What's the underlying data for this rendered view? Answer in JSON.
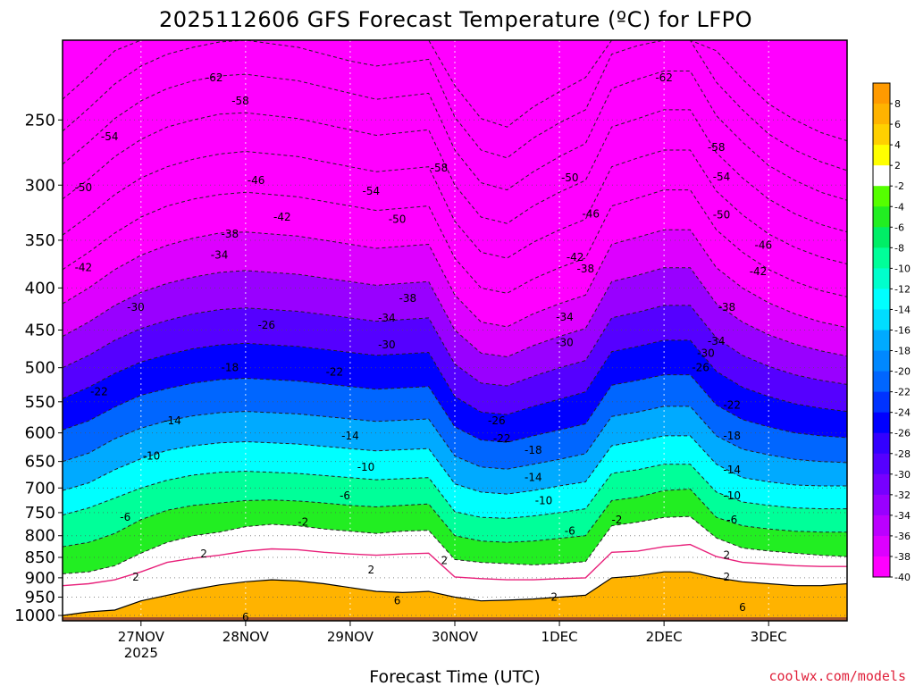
{
  "chart_data": {
    "type": "heatmap",
    "title": "2025112606 GFS Forecast Temperature (ºC) for LFPO",
    "xlabel": "Forecast Time (UTC)",
    "ylabel": "",
    "credit": "coolwx.com/models",
    "colors": {
      "surface": "#a0522d",
      "freezing_line": "#e8207a",
      "contour": "#222222",
      "positive_contour": "#000000"
    },
    "x_ticks": [
      {
        "label": "27NOV",
        "sub": "2025",
        "day": 27
      },
      {
        "label": "28NOV",
        "sub": "",
        "day": 28
      },
      {
        "label": "29NOV",
        "sub": "",
        "day": 29
      },
      {
        "label": "30NOV",
        "sub": "",
        "day": 30
      },
      {
        "label": "1DEC",
        "sub": "",
        "day": 31
      },
      {
        "label": "2DEC",
        "sub": "",
        "day": 32
      },
      {
        "label": "3DEC",
        "sub": "",
        "day": 33
      }
    ],
    "xlim": [
      26.25,
      33.75
    ],
    "pressure_levels": [
      250,
      300,
      350,
      400,
      450,
      500,
      550,
      600,
      650,
      700,
      750,
      800,
      850,
      900,
      950,
      1000
    ],
    "ylim_pressure": [
      200,
      1015
    ],
    "colorbar": {
      "labels": [
        "8",
        "6",
        "4",
        "2",
        "-2",
        "-4",
        "-6",
        "-8",
        "-10",
        "-12",
        "-14",
        "-16",
        "-18",
        "-20",
        "-22",
        "-24",
        "-26",
        "-28",
        "-30",
        "-32",
        "-34",
        "-36",
        "-38",
        "-40"
      ],
      "bins": [
        {
          "min": 8,
          "color": "#ff9a00"
        },
        {
          "min": 6,
          "color": "#ffb300"
        },
        {
          "min": 4,
          "color": "#ffd000"
        },
        {
          "min": 2,
          "color": "#ffff00"
        },
        {
          "min": -2,
          "color": "#ffffff"
        },
        {
          "min": -4,
          "color": "#55ff00"
        },
        {
          "min": -6,
          "color": "#22ee22"
        },
        {
          "min": -8,
          "color": "#00ee66"
        },
        {
          "min": -10,
          "color": "#00ff99"
        },
        {
          "min": -12,
          "color": "#00ffcc"
        },
        {
          "min": -14,
          "color": "#00ffff"
        },
        {
          "min": -16,
          "color": "#00ddff"
        },
        {
          "min": -18,
          "color": "#00aaff"
        },
        {
          "min": -20,
          "color": "#0088ff"
        },
        {
          "min": -22,
          "color": "#0066ff"
        },
        {
          "min": -24,
          "color": "#0033ff"
        },
        {
          "min": -26,
          "color": "#0000ff"
        },
        {
          "min": -28,
          "color": "#3300ff"
        },
        {
          "min": -30,
          "color": "#5500ff"
        },
        {
          "min": -32,
          "color": "#7700ff"
        },
        {
          "min": -34,
          "color": "#9900ff"
        },
        {
          "min": -36,
          "color": "#bb00ff"
        },
        {
          "min": -38,
          "color": "#dd00ff"
        },
        {
          "min": -999,
          "color": "#ff00ff"
        }
      ]
    },
    "isotherm_pressure_by_time": {
      "x": [
        26.25,
        26.5,
        26.75,
        27.0,
        27.25,
        27.5,
        27.75,
        28.0,
        28.25,
        28.5,
        28.75,
        29.0,
        29.25,
        29.5,
        29.75,
        30.0,
        30.25,
        30.5,
        30.75,
        31.0,
        31.25,
        31.5,
        31.75,
        32.0,
        32.25,
        32.5,
        32.75,
        33.0,
        33.25,
        33.5,
        33.75
      ],
      "levels": [
        {
          "temp": 2,
          "p": [
            1000,
            990,
            985,
            960,
            945,
            930,
            918,
            910,
            905,
            908,
            915,
            925,
            935,
            938,
            935,
            950,
            960,
            958,
            955,
            950,
            945,
            900,
            895,
            885,
            885,
            900,
            910,
            915,
            920,
            920,
            915
          ]
        },
        {
          "temp": 0,
          "p": [
            920,
            915,
            905,
            885,
            862,
            852,
            845,
            835,
            830,
            832,
            838,
            842,
            845,
            842,
            840,
            898,
            902,
            905,
            905,
            902,
            900,
            838,
            835,
            825,
            820,
            848,
            862,
            866,
            870,
            872,
            872
          ]
        },
        {
          "temp": -2,
          "p": [
            890,
            885,
            870,
            840,
            815,
            800,
            792,
            780,
            775,
            778,
            785,
            790,
            795,
            790,
            788,
            855,
            862,
            865,
            868,
            865,
            860,
            778,
            770,
            760,
            758,
            805,
            828,
            835,
            840,
            845,
            848
          ]
        },
        {
          "temp": -6,
          "p": [
            825,
            815,
            795,
            765,
            745,
            735,
            730,
            725,
            724,
            726,
            730,
            735,
            738,
            735,
            732,
            800,
            812,
            815,
            812,
            806,
            800,
            725,
            718,
            705,
            702,
            760,
            778,
            785,
            790,
            792,
            792
          ]
        },
        {
          "temp": -10,
          "p": [
            755,
            740,
            720,
            700,
            685,
            675,
            670,
            668,
            670,
            672,
            676,
            680,
            684,
            682,
            680,
            748,
            760,
            762,
            757,
            750,
            742,
            672,
            665,
            655,
            655,
            708,
            728,
            735,
            740,
            742,
            742
          ]
        },
        {
          "temp": -14,
          "p": [
            705,
            690,
            665,
            645,
            630,
            622,
            617,
            615,
            617,
            619,
            623,
            627,
            631,
            629,
            627,
            692,
            708,
            712,
            705,
            696,
            688,
            622,
            614,
            605,
            605,
            655,
            680,
            688,
            694,
            696,
            696
          ]
        },
        {
          "temp": -18,
          "p": [
            650,
            635,
            610,
            592,
            580,
            572,
            567,
            565,
            567,
            569,
            573,
            577,
            581,
            579,
            577,
            640,
            660,
            664,
            655,
            646,
            636,
            573,
            566,
            557,
            557,
            605,
            628,
            638,
            646,
            650,
            652
          ]
        },
        {
          "temp": -22,
          "p": [
            595,
            580,
            558,
            540,
            530,
            522,
            517,
            515,
            517,
            519,
            523,
            527,
            531,
            529,
            527,
            590,
            612,
            616,
            605,
            595,
            585,
            525,
            518,
            510,
            510,
            555,
            578,
            590,
            600,
            605,
            608
          ]
        },
        {
          "temp": -26,
          "p": [
            545,
            528,
            508,
            492,
            482,
            474,
            469,
            467,
            469,
            471,
            475,
            479,
            483,
            481,
            479,
            542,
            566,
            570,
            557,
            546,
            535,
            478,
            471,
            463,
            463,
            505,
            528,
            542,
            553,
            560,
            565
          ]
        },
        {
          "temp": -30,
          "p": [
            500,
            483,
            463,
            448,
            438,
            430,
            425,
            423,
            425,
            427,
            431,
            435,
            439,
            437,
            435,
            495,
            522,
            526,
            512,
            500,
            490,
            435,
            428,
            420,
            420,
            460,
            483,
            498,
            510,
            518,
            524
          ]
        },
        {
          "temp": -34,
          "p": [
            458,
            440,
            420,
            405,
            395,
            388,
            383,
            381,
            383,
            385,
            389,
            393,
            397,
            395,
            393,
            450,
            480,
            485,
            470,
            458,
            448,
            393,
            386,
            378,
            378,
            418,
            440,
            456,
            468,
            477,
            484
          ]
        },
        {
          "temp": -38,
          "p": [
            418,
            400,
            380,
            365,
            355,
            348,
            343,
            342,
            344,
            346,
            350,
            354,
            358,
            356,
            354,
            408,
            440,
            446,
            430,
            418,
            408,
            354,
            347,
            340,
            340,
            378,
            400,
            417,
            430,
            440,
            447
          ]
        },
        {
          "temp": -42,
          "p": [
            380,
            362,
            343,
            328,
            318,
            312,
            308,
            306,
            308,
            310,
            314,
            318,
            322,
            320,
            318,
            368,
            400,
            406,
            390,
            378,
            368,
            318,
            311,
            304,
            304,
            340,
            362,
            380,
            393,
            403,
            410
          ]
        },
        {
          "temp": -46,
          "p": [
            345,
            327,
            308,
            294,
            285,
            279,
            275,
            273,
            275,
            277,
            281,
            285,
            289,
            287,
            285,
            332,
            362,
            368,
            352,
            340,
            330,
            285,
            278,
            272,
            272,
            305,
            326,
            344,
            357,
            367,
            374
          ]
        },
        {
          "temp": -50,
          "p": [
            312,
            295,
            277,
            264,
            255,
            250,
            246,
            245,
            247,
            249,
            253,
            257,
            261,
            259,
            257,
            300,
            328,
            334,
            318,
            306,
            296,
            255,
            249,
            243,
            243,
            274,
            294,
            312,
            325,
            335,
            342
          ]
        },
        {
          "temp": -54,
          "p": [
            283,
            266,
            249,
            237,
            229,
            224,
            221,
            220,
            222,
            224,
            228,
            232,
            236,
            234,
            232,
            272,
            298,
            304,
            289,
            277,
            267,
            229,
            223,
            218,
            218,
            247,
            266,
            284,
            296,
            306,
            313
          ]
        },
        {
          "temp": -58,
          "p": [
            258,
            242,
            226,
            215,
            208,
            204,
            201,
            200,
            202,
            204,
            208,
            212,
            215,
            213,
            211,
            248,
            272,
            278,
            263,
            252,
            243,
            208,
            203,
            200,
            200,
            225,
            243,
            260,
            272,
            281,
            288
          ]
        },
        {
          "temp": -62,
          "p": [
            236,
            221,
            206,
            200,
            200,
            200,
            200,
            200,
            200,
            200,
            200,
            200,
            200,
            200,
            200,
            227,
            249,
            255,
            241,
            231,
            222,
            200,
            200,
            200,
            200,
            206,
            223,
            239,
            250,
            259,
            265
          ]
        }
      ]
    },
    "contour_labels": [
      {
        "text": "-62",
        "day": 27.7,
        "p": 222
      },
      {
        "text": "-62",
        "day": 32.0,
        "p": 222
      },
      {
        "text": "-58",
        "day": 27.95,
        "p": 237
      },
      {
        "text": "-58",
        "day": 29.85,
        "p": 286
      },
      {
        "text": "-58",
        "day": 32.5,
        "p": 270
      },
      {
        "text": "-54",
        "day": 26.7,
        "p": 262
      },
      {
        "text": "-54",
        "day": 29.2,
        "p": 305
      },
      {
        "text": "-54",
        "day": 32.55,
        "p": 293
      },
      {
        "text": "-50",
        "day": 26.45,
        "p": 302
      },
      {
        "text": "-50",
        "day": 29.45,
        "p": 330
      },
      {
        "text": "-50",
        "day": 31.1,
        "p": 294
      },
      {
        "text": "-50",
        "day": 32.55,
        "p": 326
      },
      {
        "text": "-46",
        "day": 28.1,
        "p": 296
      },
      {
        "text": "-46",
        "day": 31.3,
        "p": 325
      },
      {
        "text": "-46",
        "day": 32.95,
        "p": 355
      },
      {
        "text": "-42",
        "day": 26.45,
        "p": 378
      },
      {
        "text": "-42",
        "day": 28.35,
        "p": 328
      },
      {
        "text": "-42",
        "day": 31.15,
        "p": 367
      },
      {
        "text": "-42",
        "day": 32.9,
        "p": 382
      },
      {
        "text": "-38",
        "day": 27.85,
        "p": 344
      },
      {
        "text": "-38",
        "day": 29.55,
        "p": 412
      },
      {
        "text": "-38",
        "day": 31.25,
        "p": 379
      },
      {
        "text": "-38",
        "day": 32.6,
        "p": 422
      },
      {
        "text": "-34",
        "day": 27.75,
        "p": 365
      },
      {
        "text": "-34",
        "day": 29.35,
        "p": 435
      },
      {
        "text": "-34",
        "day": 31.05,
        "p": 434
      },
      {
        "text": "-34",
        "day": 32.5,
        "p": 464
      },
      {
        "text": "-30",
        "day": 26.95,
        "p": 422
      },
      {
        "text": "-30",
        "day": 29.35,
        "p": 469
      },
      {
        "text": "-30",
        "day": 31.05,
        "p": 466
      },
      {
        "text": "-30",
        "day": 32.4,
        "p": 480
      },
      {
        "text": "-26",
        "day": 28.2,
        "p": 444
      },
      {
        "text": "-26",
        "day": 30.4,
        "p": 580
      },
      {
        "text": "-26",
        "day": 32.35,
        "p": 500
      },
      {
        "text": "-22",
        "day": 26.6,
        "p": 535
      },
      {
        "text": "-22",
        "day": 28.85,
        "p": 506
      },
      {
        "text": "-22",
        "day": 30.45,
        "p": 610
      },
      {
        "text": "-22",
        "day": 32.65,
        "p": 555
      },
      {
        "text": "-18",
        "day": 27.85,
        "p": 500
      },
      {
        "text": "-18",
        "day": 30.75,
        "p": 630
      },
      {
        "text": "-18",
        "day": 32.65,
        "p": 605
      },
      {
        "text": "-14",
        "day": 27.3,
        "p": 580
      },
      {
        "text": "-14",
        "day": 29.0,
        "p": 605
      },
      {
        "text": "-14",
        "day": 30.75,
        "p": 680
      },
      {
        "text": "-14",
        "day": 32.65,
        "p": 665
      },
      {
        "text": "-10",
        "day": 27.1,
        "p": 640
      },
      {
        "text": "-10",
        "day": 29.15,
        "p": 660
      },
      {
        "text": "-10",
        "day": 30.85,
        "p": 725
      },
      {
        "text": "-10",
        "day": 32.65,
        "p": 715
      },
      {
        "text": "-6",
        "day": 26.85,
        "p": 760
      },
      {
        "text": "-6",
        "day": 28.95,
        "p": 715
      },
      {
        "text": "-6",
        "day": 31.1,
        "p": 790
      },
      {
        "text": "-6",
        "day": 32.65,
        "p": 765
      },
      {
        "text": "-2",
        "day": 28.55,
        "p": 770
      },
      {
        "text": "-2",
        "day": 31.55,
        "p": 765
      },
      {
        "text": "2",
        "day": 27.6,
        "p": 842
      },
      {
        "text": "2",
        "day": 29.9,
        "p": 857
      },
      {
        "text": "2",
        "day": 32.6,
        "p": 845
      },
      {
        "text": "2",
        "day": 26.95,
        "p": 898
      },
      {
        "text": "2",
        "day": 29.2,
        "p": 880
      },
      {
        "text": "2",
        "day": 30.95,
        "p": 950
      },
      {
        "text": "2",
        "day": 32.6,
        "p": 898
      },
      {
        "text": "6",
        "day": 28.0,
        "p": 1005
      },
      {
        "text": "6",
        "day": 29.45,
        "p": 960
      },
      {
        "text": "6",
        "day": 32.75,
        "p": 978
      }
    ]
  }
}
